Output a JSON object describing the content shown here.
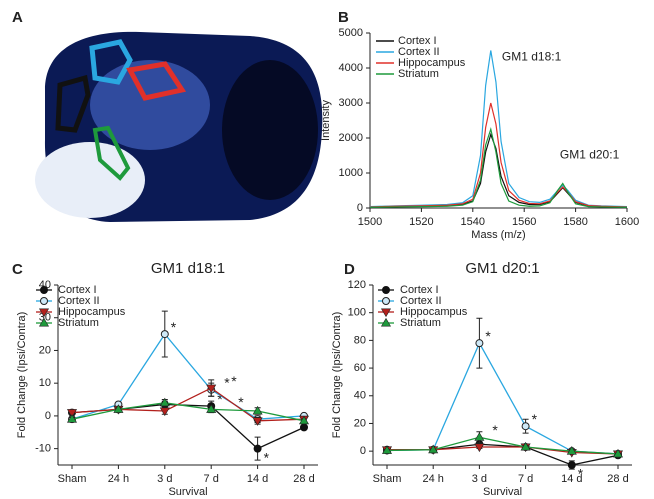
{
  "panel_a": {
    "label": "A"
  },
  "chart_data": [
    {
      "panel": "B",
      "type": "line",
      "xlabel": "Mass (m/z)",
      "ylabel": "Intensity",
      "x": [
        1500,
        1510,
        1520,
        1530,
        1536,
        1540,
        1543,
        1545,
        1547,
        1549,
        1551,
        1554,
        1558,
        1562,
        1566,
        1570,
        1573,
        1575,
        1577,
        1580,
        1585,
        1590,
        1600
      ],
      "series": [
        {
          "name": "Cortex I",
          "color": "#111111",
          "values": [
            30,
            50,
            60,
            70,
            100,
            200,
            700,
            1600,
            2100,
            1700,
            900,
            350,
            160,
            100,
            100,
            180,
            420,
            580,
            420,
            160,
            60,
            40,
            30
          ]
        },
        {
          "name": "Cortex II",
          "color": "#2aa7e0",
          "values": [
            40,
            60,
            80,
            100,
            150,
            350,
            1500,
            3500,
            4500,
            3600,
            1900,
            700,
            300,
            180,
            160,
            250,
            500,
            650,
            500,
            220,
            80,
            60,
            40
          ]
        },
        {
          "name": "Hippocampus",
          "color": "#e0302a",
          "values": [
            30,
            50,
            60,
            80,
            120,
            250,
            1000,
            2300,
            3000,
            2400,
            1300,
            500,
            220,
            130,
            120,
            200,
            450,
            600,
            450,
            180,
            70,
            50,
            30
          ]
        },
        {
          "name": "Striatum",
          "color": "#1e9a3c",
          "values": [
            20,
            30,
            40,
            50,
            80,
            180,
            800,
            1800,
            2250,
            1600,
            700,
            200,
            80,
            50,
            60,
            150,
            500,
            700,
            450,
            120,
            40,
            30,
            20
          ]
        }
      ],
      "xlim": [
        1500,
        1600
      ],
      "xticks": [
        1500,
        1520,
        1540,
        1560,
        1580,
        1600
      ],
      "ylim": [
        0,
        5000
      ],
      "yticks": [
        0,
        1000,
        2000,
        3000,
        4000,
        5000
      ],
      "legend": "upper left",
      "annotations": [
        "GM1 d18:1",
        "GM1 d20:1"
      ]
    },
    {
      "panel": "C",
      "type": "line",
      "title": "GM1 d18:1",
      "xlabel": "Survival",
      "ylabel": "Fold Change (Ipsi/Contra)",
      "categories": [
        "Sham",
        "24 h",
        "3 d",
        "7 d",
        "14 d",
        "28 d"
      ],
      "series": [
        {
          "name": "Cortex I",
          "color": "#111111",
          "marker": "circle",
          "values": [
            1,
            2,
            3.5,
            3,
            -10,
            -3.5
          ],
          "errors": [
            0.5,
            0.5,
            1,
            1.5,
            3.5,
            0.5
          ],
          "significance": [
            null,
            null,
            null,
            "*",
            "*",
            null
          ]
        },
        {
          "name": "Cortex II",
          "color": "#2aa7e0",
          "marker": "open-circle",
          "values": [
            -1,
            3.5,
            25,
            8,
            -1,
            0
          ],
          "errors": [
            0.5,
            0.5,
            7,
            2,
            1,
            0.5
          ],
          "significance": [
            null,
            null,
            "*",
            "*",
            null,
            null
          ]
        },
        {
          "name": "Hippocampus",
          "color": "#b3201c",
          "marker": "triangle-down",
          "values": [
            1,
            2,
            1.5,
            8.5,
            -1.5,
            -1
          ],
          "errors": [
            0.5,
            0.5,
            1,
            2.5,
            1,
            0.5
          ],
          "significance": [
            null,
            null,
            null,
            "*",
            null,
            null
          ]
        },
        {
          "name": "Striatum",
          "color": "#1e9a3c",
          "marker": "triangle-up",
          "values": [
            -1,
            2,
            4,
            2,
            1.5,
            -1.5
          ],
          "errors": [
            0.5,
            0.5,
            1,
            1,
            1,
            0.5
          ],
          "significance": [
            null,
            null,
            null,
            "*",
            null,
            null
          ]
        }
      ],
      "ylim": [
        -15,
        40
      ],
      "yticks": [
        -10,
        0,
        10,
        20,
        30,
        40
      ],
      "legend": "upper left"
    },
    {
      "panel": "D",
      "type": "line",
      "title": "GM1 d20:1",
      "xlabel": "Survival",
      "ylabel": "Fold Change (Ipsi/Contra)",
      "categories": [
        "Sham",
        "24 h",
        "3 d",
        "7 d",
        "14 d",
        "28 d"
      ],
      "series": [
        {
          "name": "Cortex I",
          "color": "#111111",
          "marker": "circle",
          "values": [
            1,
            1,
            5,
            3,
            -10,
            -3
          ],
          "errors": [
            0.5,
            0.5,
            2,
            1,
            3,
            1
          ],
          "significance": [
            null,
            null,
            null,
            null,
            "*",
            null
          ]
        },
        {
          "name": "Cortex II",
          "color": "#2aa7e0",
          "marker": "open-circle",
          "values": [
            0.5,
            1,
            78,
            18,
            0,
            -2
          ],
          "errors": [
            0.5,
            0.5,
            18,
            5,
            1,
            0.5
          ],
          "significance": [
            null,
            null,
            "*",
            "*",
            null,
            null
          ]
        },
        {
          "name": "Hippocampus",
          "color": "#b3201c",
          "marker": "triangle-down",
          "values": [
            1,
            1,
            3,
            3,
            -1,
            -2
          ],
          "errors": [
            0.5,
            0.5,
            1,
            1,
            1,
            0.5
          ],
          "significance": [
            null,
            null,
            null,
            null,
            null,
            null
          ]
        },
        {
          "name": "Striatum",
          "color": "#1e9a3c",
          "marker": "triangle-up",
          "values": [
            0.5,
            1,
            10,
            3,
            0,
            -2
          ],
          "errors": [
            0.5,
            0.5,
            4,
            1,
            1,
            0.5
          ],
          "significance": [
            null,
            null,
            "*",
            null,
            null,
            null
          ]
        }
      ],
      "ylim": [
        -10,
        120
      ],
      "yticks": [
        0,
        20,
        40,
        60,
        80,
        100,
        120
      ],
      "legend": "upper left"
    }
  ]
}
